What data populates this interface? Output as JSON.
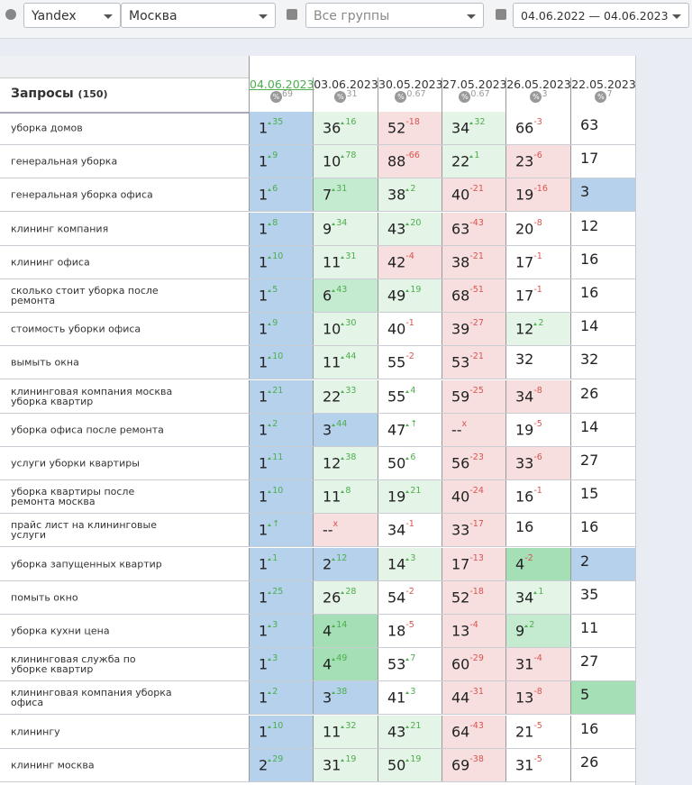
{
  "filters": {
    "engine": "Yandex",
    "region": "Москва",
    "group": "Все группы",
    "period": "04.06.2022 — 04.06.2023"
  },
  "table": {
    "query_header": "Запросы",
    "query_count": "(150)",
    "percent_icon": "%",
    "dates": [
      {
        "date": "04.06.2023",
        "score": "69"
      },
      {
        "date": "03.06.2023",
        "score": "31"
      },
      {
        "date": "30.05.2023",
        "score": "0.67"
      },
      {
        "date": "27.05.2023",
        "score": "0.67"
      },
      {
        "date": "26.05.2023",
        "score": "3"
      },
      {
        "date": "22.05.2023",
        "score": "7"
      }
    ],
    "rows": [
      {
        "query": "уборка домов",
        "cells": [
          {
            "value": 1,
            "delta": "35",
            "tone": "blue"
          },
          {
            "value": 36,
            "delta": "16",
            "tone": "green1"
          },
          {
            "value": 52,
            "delta": "-18",
            "tone": "red"
          },
          {
            "value": 34,
            "delta": "32",
            "tone": "green1"
          },
          {
            "value": 66,
            "delta": "-3",
            "tone": "white"
          },
          {
            "value": 63,
            "tone": "white"
          }
        ]
      },
      {
        "query": "генеральная уборка",
        "cells": [
          {
            "value": 1,
            "delta": "9",
            "tone": "blue"
          },
          {
            "value": 10,
            "delta": "78",
            "tone": "green1"
          },
          {
            "value": 88,
            "delta": "-66",
            "tone": "red"
          },
          {
            "value": 22,
            "delta": "1",
            "tone": "green1"
          },
          {
            "value": 23,
            "delta": "-6",
            "tone": "red"
          },
          {
            "value": 17,
            "tone": "white"
          }
        ]
      },
      {
        "query": "генеральная уборка офиса",
        "cells": [
          {
            "value": 1,
            "delta": "6",
            "tone": "blue"
          },
          {
            "value": 7,
            "delta": "31",
            "tone": "green2"
          },
          {
            "value": 38,
            "delta": "2",
            "tone": "green1"
          },
          {
            "value": 40,
            "delta": "-21",
            "tone": "red"
          },
          {
            "value": 19,
            "delta": "-16",
            "tone": "red"
          },
          {
            "value": 3,
            "tone": "blue"
          }
        ]
      },
      {
        "query": "клининг компания",
        "cells": [
          {
            "value": 1,
            "delta": "8",
            "tone": "blue"
          },
          {
            "value": 9,
            "delta": "34",
            "tone": "green1"
          },
          {
            "value": 43,
            "delta": "20",
            "tone": "green1"
          },
          {
            "value": 63,
            "delta": "-43",
            "tone": "red"
          },
          {
            "value": 20,
            "delta": "-8",
            "tone": "white"
          },
          {
            "value": 12,
            "tone": "white"
          }
        ]
      },
      {
        "query": "клининг офиса",
        "cells": [
          {
            "value": 1,
            "delta": "10",
            "tone": "blue"
          },
          {
            "value": 11,
            "delta": "31",
            "tone": "green1"
          },
          {
            "value": 42,
            "delta": "-4",
            "tone": "red"
          },
          {
            "value": 38,
            "delta": "-21",
            "tone": "red"
          },
          {
            "value": 17,
            "delta": "-1",
            "tone": "white"
          },
          {
            "value": 16,
            "tone": "white"
          }
        ]
      },
      {
        "query": "сколько стоит уборка после ремонта",
        "cells": [
          {
            "value": 1,
            "delta": "5",
            "tone": "blue"
          },
          {
            "value": 6,
            "delta": "43",
            "tone": "green2"
          },
          {
            "value": 49,
            "delta": "19",
            "tone": "green1"
          },
          {
            "value": 68,
            "delta": "-51",
            "tone": "red"
          },
          {
            "value": 17,
            "delta": "-1",
            "tone": "white"
          },
          {
            "value": 16,
            "tone": "white"
          }
        ]
      },
      {
        "query": "стоимость уборки офиса",
        "cells": [
          {
            "value": 1,
            "delta": "9",
            "tone": "blue"
          },
          {
            "value": 10,
            "delta": "30",
            "tone": "green1"
          },
          {
            "value": 40,
            "delta": "-1",
            "tone": "white"
          },
          {
            "value": 39,
            "delta": "-27",
            "tone": "red"
          },
          {
            "value": 12,
            "delta": "2",
            "tone": "green1"
          },
          {
            "value": 14,
            "tone": "white"
          }
        ]
      },
      {
        "query": "вымыть окна",
        "cells": [
          {
            "value": 1,
            "delta": "10",
            "tone": "blue"
          },
          {
            "value": 11,
            "delta": "44",
            "tone": "green1"
          },
          {
            "value": 55,
            "delta": "-2",
            "tone": "white"
          },
          {
            "value": 53,
            "delta": "-21",
            "tone": "red"
          },
          {
            "value": 32,
            "tone": "white"
          },
          {
            "value": 32,
            "tone": "white"
          }
        ]
      },
      {
        "query": "клининговая компания москва уборка квартир",
        "cells": [
          {
            "value": 1,
            "delta": "21",
            "tone": "blue"
          },
          {
            "value": 22,
            "delta": "33",
            "tone": "green1"
          },
          {
            "value": 55,
            "delta": "4",
            "tone": "white"
          },
          {
            "value": 59,
            "delta": "-25",
            "tone": "red"
          },
          {
            "value": 34,
            "delta": "-8",
            "tone": "red"
          },
          {
            "value": 26,
            "tone": "white"
          }
        ]
      },
      {
        "query": "уборка офиса после ремонта",
        "cells": [
          {
            "value": 1,
            "delta": "2",
            "tone": "blue"
          },
          {
            "value": 3,
            "delta": "44",
            "tone": "blue"
          },
          {
            "value": 47,
            "delta": "↑",
            "tone": "white"
          },
          {
            "value": "--",
            "delta": "x",
            "tone": "red"
          },
          {
            "value": 19,
            "delta": "-5",
            "tone": "white"
          },
          {
            "value": 14,
            "tone": "white"
          }
        ]
      },
      {
        "query": "услуги уборки квартиры",
        "cells": [
          {
            "value": 1,
            "delta": "11",
            "tone": "blue"
          },
          {
            "value": 12,
            "delta": "38",
            "tone": "green1"
          },
          {
            "value": 50,
            "delta": "6",
            "tone": "white"
          },
          {
            "value": 56,
            "delta": "-23",
            "tone": "red"
          },
          {
            "value": 33,
            "delta": "-6",
            "tone": "red"
          },
          {
            "value": 27,
            "tone": "white"
          }
        ]
      },
      {
        "query": "уборка квартиры после ремонта москва",
        "cells": [
          {
            "value": 1,
            "delta": "10",
            "tone": "blue"
          },
          {
            "value": 11,
            "delta": "8",
            "tone": "green1"
          },
          {
            "value": 19,
            "delta": "21",
            "tone": "green1"
          },
          {
            "value": 40,
            "delta": "-24",
            "tone": "red"
          },
          {
            "value": 16,
            "delta": "-1",
            "tone": "white"
          },
          {
            "value": 15,
            "tone": "white"
          }
        ]
      },
      {
        "query": "прайс лист на клининговые услуги",
        "cells": [
          {
            "value": 1,
            "delta": "↑",
            "tone": "blue"
          },
          {
            "value": "--",
            "delta": "x",
            "tone": "red"
          },
          {
            "value": 34,
            "delta": "-1",
            "tone": "white"
          },
          {
            "value": 33,
            "delta": "-17",
            "tone": "red"
          },
          {
            "value": 16,
            "tone": "white"
          },
          {
            "value": 16,
            "tone": "white"
          }
        ]
      },
      {
        "query": "уборка запущенных квартир",
        "cells": [
          {
            "value": 1,
            "delta": "1",
            "tone": "blue"
          },
          {
            "value": 2,
            "delta": "12",
            "tone": "blue"
          },
          {
            "value": 14,
            "delta": "3",
            "tone": "green1"
          },
          {
            "value": 17,
            "delta": "-13",
            "tone": "red"
          },
          {
            "value": 4,
            "delta": "-2",
            "tone": "green3"
          },
          {
            "value": 2,
            "tone": "blue"
          }
        ]
      },
      {
        "query": "помыть окно",
        "cells": [
          {
            "value": 1,
            "delta": "25",
            "tone": "blue"
          },
          {
            "value": 26,
            "delta": "28",
            "tone": "green1"
          },
          {
            "value": 54,
            "delta": "-2",
            "tone": "white"
          },
          {
            "value": 52,
            "delta": "-18",
            "tone": "red"
          },
          {
            "value": 34,
            "delta": "1",
            "tone": "green1"
          },
          {
            "value": 35,
            "tone": "white"
          }
        ]
      },
      {
        "query": "уборка кухни цена",
        "cells": [
          {
            "value": 1,
            "delta": "3",
            "tone": "blue"
          },
          {
            "value": 4,
            "delta": "14",
            "tone": "green3"
          },
          {
            "value": 18,
            "delta": "-5",
            "tone": "white"
          },
          {
            "value": 13,
            "delta": "-4",
            "tone": "red"
          },
          {
            "value": 9,
            "delta": "2",
            "tone": "green2"
          },
          {
            "value": 11,
            "tone": "white"
          }
        ]
      },
      {
        "query": "клининговая служба по уборке квартир",
        "cells": [
          {
            "value": 1,
            "delta": "3",
            "tone": "blue"
          },
          {
            "value": 4,
            "delta": "49",
            "tone": "green3"
          },
          {
            "value": 53,
            "delta": "7",
            "tone": "white"
          },
          {
            "value": 60,
            "delta": "-29",
            "tone": "red"
          },
          {
            "value": 31,
            "delta": "-4",
            "tone": "red"
          },
          {
            "value": 27,
            "tone": "white"
          }
        ]
      },
      {
        "query": "клининговая компания уборка офиса",
        "cells": [
          {
            "value": 1,
            "delta": "2",
            "tone": "blue"
          },
          {
            "value": 3,
            "delta": "38",
            "tone": "blue"
          },
          {
            "value": 41,
            "delta": "3",
            "tone": "white"
          },
          {
            "value": 44,
            "delta": "-31",
            "tone": "red"
          },
          {
            "value": 13,
            "delta": "-8",
            "tone": "red"
          },
          {
            "value": 5,
            "tone": "green3"
          }
        ]
      },
      {
        "query": "клинингу",
        "cells": [
          {
            "value": 1,
            "delta": "10",
            "tone": "blue"
          },
          {
            "value": 11,
            "delta": "32",
            "tone": "green1"
          },
          {
            "value": 43,
            "delta": "21",
            "tone": "green1"
          },
          {
            "value": 64,
            "delta": "-43",
            "tone": "red"
          },
          {
            "value": 21,
            "delta": "-5",
            "tone": "white"
          },
          {
            "value": 16,
            "tone": "white"
          }
        ]
      },
      {
        "query": "клининг москва",
        "cells": [
          {
            "value": 2,
            "delta": "29",
            "tone": "blue"
          },
          {
            "value": 31,
            "delta": "19",
            "tone": "green1"
          },
          {
            "value": 50,
            "delta": "19",
            "tone": "green1"
          },
          {
            "value": 69,
            "delta": "-38",
            "tone": "red"
          },
          {
            "value": 31,
            "delta": "-5",
            "tone": "white"
          },
          {
            "value": 26,
            "tone": "white"
          }
        ]
      }
    ]
  }
}
